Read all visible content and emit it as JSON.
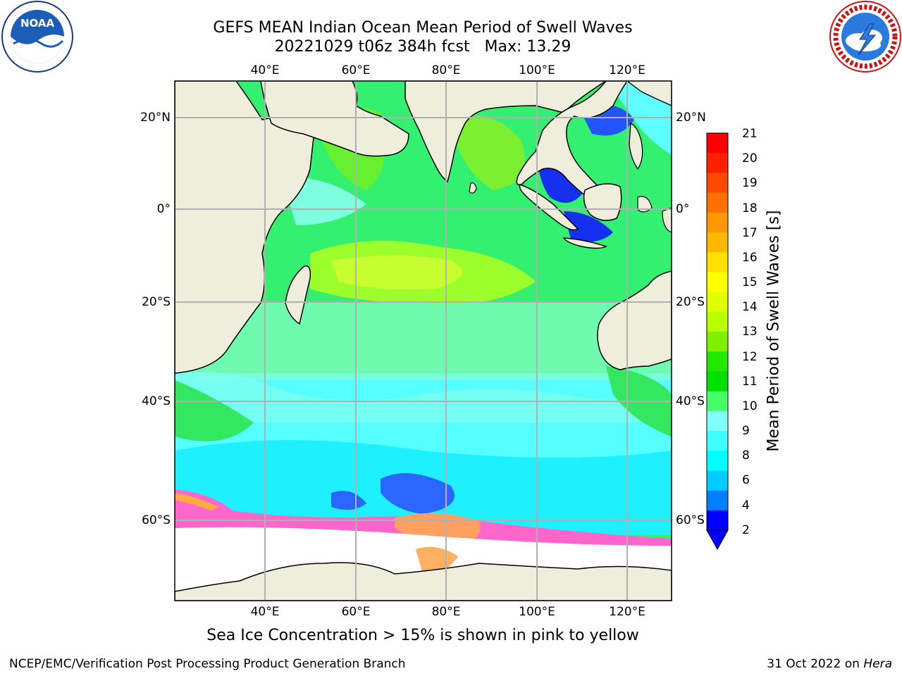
{
  "title": {
    "line1": "GEFS MEAN Indian Ocean Mean Period of Swell Waves",
    "line2_run": "20221029 t06z 384h fcst",
    "line2_max": "Max: 13.29"
  },
  "logos": {
    "left": {
      "text": "NOAA",
      "ring_text": "NATIONAL OCEANIC AND ATMOSPHERIC ADMINISTRATION · U.S. DEPARTMENT OF COMMERCE"
    },
    "right": {
      "ring_text": "NATIONAL WEATHER SERVICE"
    }
  },
  "map": {
    "lon_labels": [
      "40°E",
      "60°E",
      "80°E",
      "100°E",
      "120°E"
    ],
    "lat_labels": [
      "20°N",
      "0°",
      "20°S",
      "40°S",
      "60°S"
    ],
    "land_color": "#efeedc",
    "ice_color": "#ff80c0",
    "ocean_colors": {
      "cyan": "#00ffff",
      "light_cyan": "#80ffff",
      "green": "#22e84a",
      "light_green": "#44f044",
      "yellow_green": "#b8ff00",
      "blue": "#2266ff",
      "dark_blue": "#0033ee"
    }
  },
  "colorbar": {
    "label": "Mean Period of Swell Waves [s]",
    "ticks": [
      "21",
      "20",
      "19",
      "18",
      "17",
      "16",
      "15",
      "14",
      "13",
      "12",
      "11",
      "10",
      "9",
      "8",
      "6",
      "4",
      "2"
    ],
    "colors": [
      "#ff0000",
      "#ff2000",
      "#ff4800",
      "#ff7000",
      "#ff9800",
      "#ffb800",
      "#ffe000",
      "#ffff00",
      "#e0ff00",
      "#b8ff00",
      "#80f000",
      "#22e800",
      "#00e000",
      "#44ff66",
      "#80ffff",
      "#40ffff",
      "#00ffff",
      "#00ccff",
      "#0080ff",
      "#0000ff"
    ]
  },
  "caption": "Sea Ice Concentration > 15% is shown in pink to yellow",
  "footer": {
    "left": "NCEP/EMC/Verification Post Processing Product Generation Branch",
    "right_date": "31 Oct 2022 on ",
    "right_host": "Hera"
  }
}
